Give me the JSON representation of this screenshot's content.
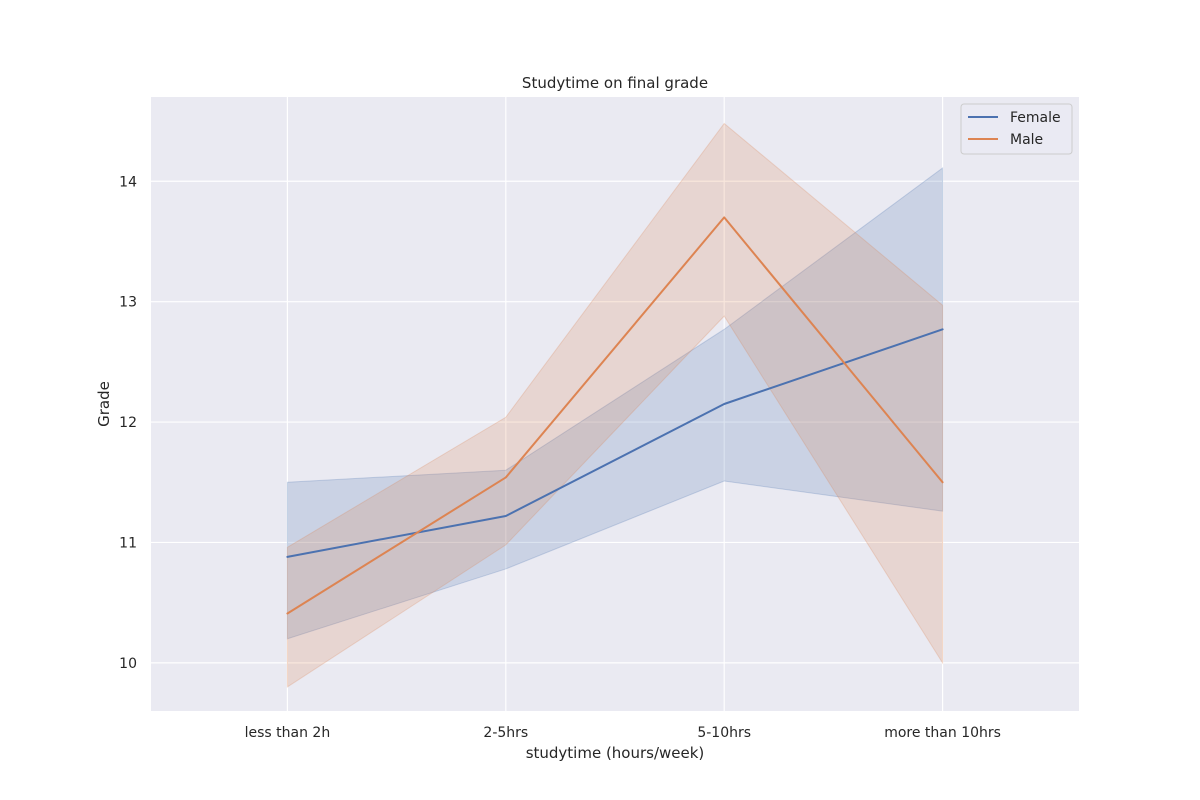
{
  "chart_data": {
    "type": "line",
    "title": "Studytime on final grade",
    "xlabel": "studytime (hours/week)",
    "ylabel": "Grade",
    "categories": [
      "less than 2h",
      "2-5hrs",
      "5-10hrs",
      "more than 10hrs"
    ],
    "ylim": [
      9.6,
      14.7
    ],
    "yticks": [
      10,
      11,
      12,
      13,
      14
    ],
    "grid": true,
    "legend_position": "top-right",
    "series": [
      {
        "name": "Female",
        "color": "#4c72b0",
        "values": [
          10.88,
          11.22,
          12.15,
          12.77
        ],
        "ci_lower": [
          10.2,
          10.78,
          11.51,
          11.26
        ],
        "ci_upper": [
          11.5,
          11.6,
          12.77,
          14.11
        ]
      },
      {
        "name": "Male",
        "color": "#dd8452",
        "values": [
          10.41,
          11.54,
          13.7,
          11.5
        ],
        "ci_lower": [
          9.8,
          10.98,
          12.88,
          10.0
        ],
        "ci_upper": [
          10.96,
          12.04,
          14.48,
          12.97
        ]
      }
    ]
  }
}
